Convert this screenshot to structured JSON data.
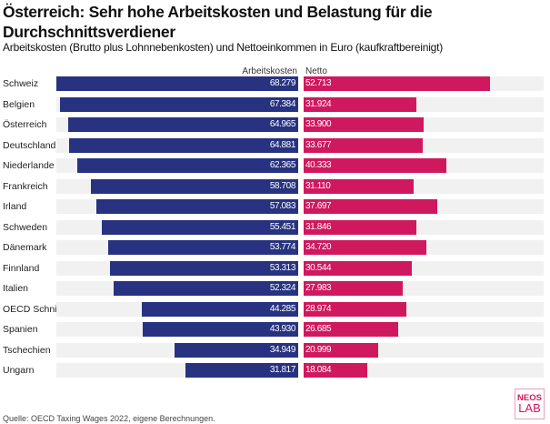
{
  "chart_data": {
    "type": "bar",
    "orientation": "horizontal-diverging",
    "title": "Österreich: Sehr hohe Arbeitskosten und Belastung für die Durchschnittsverdiener",
    "subtitle": "Arbeitskosten (Brutto plus Lohnnebenkosten) und Nettoeinkommen in Euro (kaufkraftbereinigt)",
    "categories": [
      "Schweiz",
      "Belgien",
      "Österreich",
      "Deutschland",
      "Niederlande",
      "Frankreich",
      "Irland",
      "Schweden",
      "Dänemark",
      "Finnland",
      "Italien",
      "OECD Schnitt",
      "Spanien",
      "Tschechien",
      "Ungarn"
    ],
    "series": [
      {
        "name": "Arbeitskosten",
        "color": "#273280",
        "values": [
          68279,
          67384,
          64965,
          64881,
          62365,
          58708,
          57083,
          55451,
          53774,
          53313,
          52324,
          44285,
          43930,
          34949,
          31817
        ]
      },
      {
        "name": "Netto",
        "color": "#d0185f",
        "values": [
          52713,
          31924,
          33900,
          33677,
          40333,
          31110,
          37697,
          31846,
          34720,
          30544,
          27983,
          28974,
          26685,
          20999,
          18084
        ]
      }
    ],
    "grid": false,
    "source": "Quelle: OECD Taxing Wages 2022, eigene Berechnungen."
  },
  "logo": {
    "line1": "NEOS",
    "line2": "LAB"
  }
}
